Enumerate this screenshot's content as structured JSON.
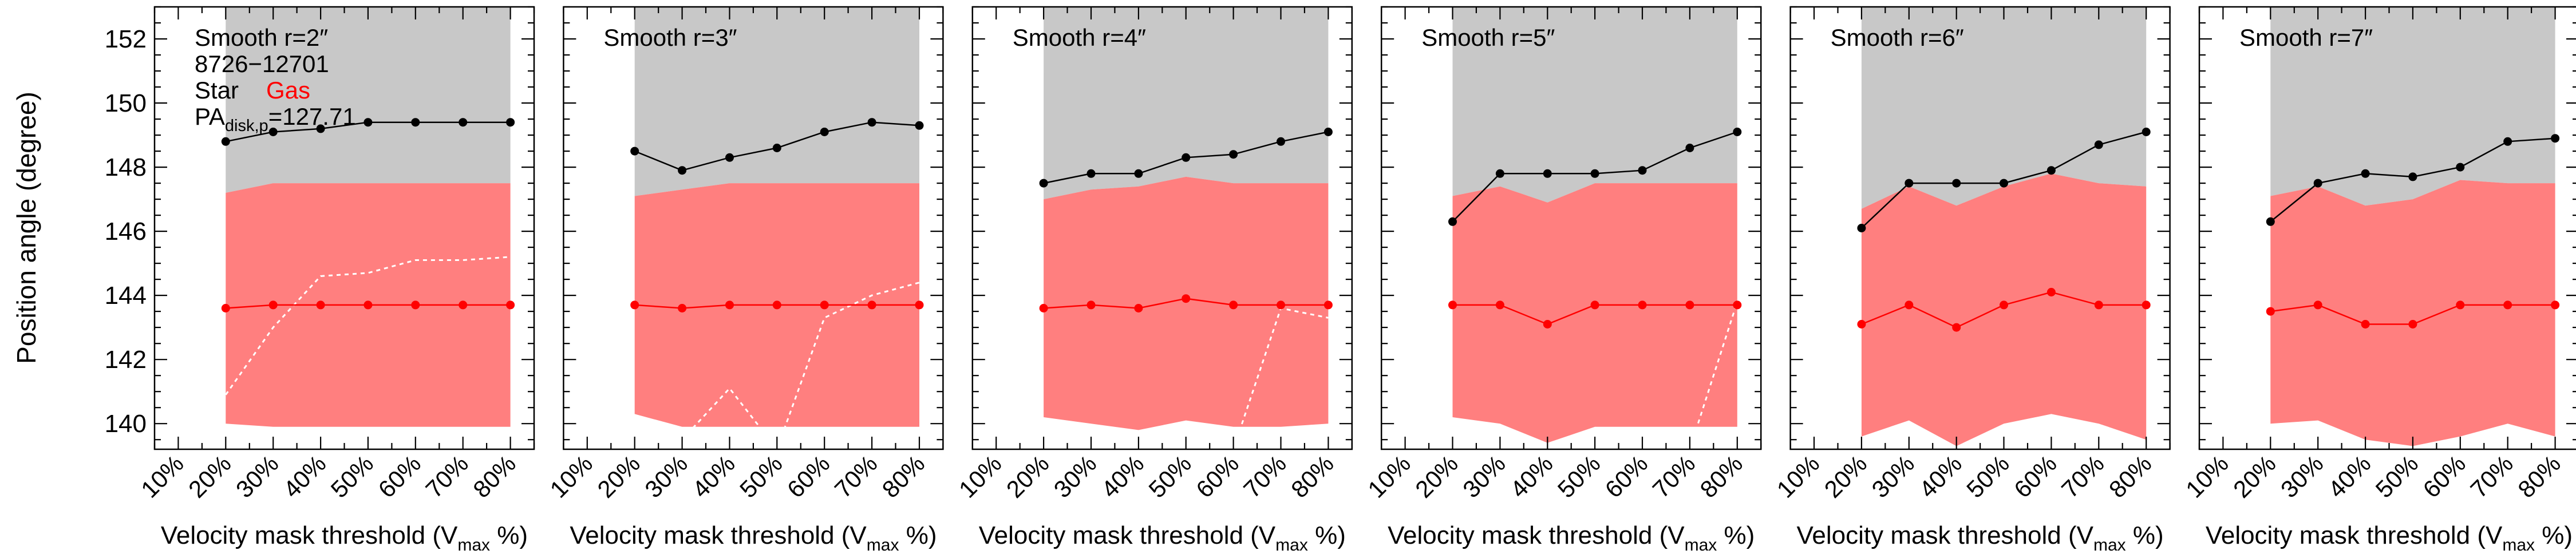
{
  "figure": {
    "ylabel": "Position angle (degree)",
    "xlabel_main": "Velocity mask threshold (V",
    "xlabel_sub": "max",
    "xlabel_tail": " %)",
    "legend": {
      "id_text": "8726−12701",
      "star_label": "Star",
      "gas_label": "Gas",
      "pa_main": "PA",
      "pa_sub": "disk,p",
      "pa_value": "=127.71"
    },
    "colors": {
      "star": "#000000",
      "gas": "#ff0000",
      "star_band": "#c8c8c8",
      "gas_band": "#ff7f7f",
      "dotted": "#ffffff"
    }
  },
  "chart_data": [
    {
      "type": "line",
      "title": "Smooth r=2″",
      "xticks": [
        "10%",
        "20%",
        "30%",
        "40%",
        "50%",
        "60%",
        "70%",
        "80%"
      ],
      "yticks": [
        140,
        142,
        144,
        146,
        148,
        150,
        152
      ],
      "xlim": [
        0.05,
        0.85
      ],
      "ylim": [
        139.2,
        153.0
      ],
      "x": [
        0.2,
        0.3,
        0.4,
        0.5,
        0.6,
        0.7,
        0.8
      ],
      "series": [
        {
          "name": "Star",
          "values": [
            148.8,
            149.1,
            149.2,
            149.4,
            149.4,
            149.4,
            149.4
          ]
        },
        {
          "name": "Gas",
          "values": [
            143.6,
            143.7,
            143.7,
            143.7,
            143.7,
            143.7,
            143.7
          ]
        }
      ],
      "star_band": {
        "upper": [
          153.0,
          153.0,
          153.0,
          153.0,
          153.0,
          153.0,
          153.0
        ],
        "lower": [
          147.2,
          147.5,
          147.5,
          147.5,
          147.5,
          147.5,
          147.5
        ]
      },
      "gas_band": {
        "upper": [
          147.2,
          147.5,
          147.5,
          147.5,
          147.5,
          147.5,
          147.5
        ],
        "lower": [
          140.0,
          139.9,
          139.9,
          139.9,
          139.9,
          139.9,
          139.9
        ]
      },
      "dotted_line": [
        140.9,
        143.0,
        144.6,
        144.7,
        145.1,
        145.1,
        145.2
      ]
    },
    {
      "type": "line",
      "title": "Smooth r=3″",
      "xticks": [
        "10%",
        "20%",
        "30%",
        "40%",
        "50%",
        "60%",
        "70%",
        "80%"
      ],
      "xlim": [
        0.05,
        0.85
      ],
      "ylim": [
        139.2,
        153.0
      ],
      "x": [
        0.2,
        0.3,
        0.4,
        0.5,
        0.6,
        0.7,
        0.8
      ],
      "series": [
        {
          "name": "Star",
          "values": [
            148.5,
            147.9,
            148.3,
            148.6,
            149.1,
            149.4,
            149.3
          ]
        },
        {
          "name": "Gas",
          "values": [
            143.7,
            143.6,
            143.7,
            143.7,
            143.7,
            143.7,
            143.7
          ]
        }
      ],
      "star_band": {
        "upper": [
          153.0,
          153.0,
          153.0,
          153.0,
          153.0,
          153.0,
          153.0
        ],
        "lower": [
          147.1,
          147.3,
          147.5,
          147.5,
          147.5,
          147.5,
          147.5
        ]
      },
      "gas_band": {
        "upper": [
          147.1,
          147.3,
          147.5,
          147.5,
          147.5,
          147.5,
          147.5
        ],
        "lower": [
          140.3,
          139.9,
          139.9,
          139.9,
          139.9,
          139.9,
          139.9
        ]
      },
      "dotted_line": [
        139.2,
        139.5,
        141.1,
        139.2,
        143.3,
        144.0,
        144.4
      ]
    },
    {
      "type": "line",
      "title": "Smooth r=4″",
      "xticks": [
        "10%",
        "20%",
        "30%",
        "40%",
        "50%",
        "60%",
        "70%",
        "80%"
      ],
      "xlim": [
        0.05,
        0.85
      ],
      "ylim": [
        139.2,
        153.0
      ],
      "x": [
        0.2,
        0.3,
        0.4,
        0.5,
        0.6,
        0.7,
        0.8
      ],
      "series": [
        {
          "name": "Star",
          "values": [
            147.5,
            147.8,
            147.8,
            148.3,
            148.4,
            148.8,
            149.1
          ]
        },
        {
          "name": "Gas",
          "values": [
            143.6,
            143.7,
            143.6,
            143.9,
            143.7,
            143.7,
            143.7
          ]
        }
      ],
      "star_band": {
        "upper": [
          153.0,
          153.0,
          153.0,
          153.0,
          153.0,
          153.0,
          153.0
        ],
        "lower": [
          147.0,
          147.3,
          147.4,
          147.7,
          147.5,
          147.5,
          147.5
        ]
      },
      "gas_band": {
        "upper": [
          147.0,
          147.3,
          147.4,
          147.7,
          147.5,
          147.5,
          147.5
        ],
        "lower": [
          140.2,
          140.0,
          139.8,
          140.1,
          139.9,
          139.9,
          140.0
        ]
      },
      "dotted_line": [
        139.2,
        139.2,
        139.2,
        139.2,
        139.2,
        143.6,
        143.3
      ]
    },
    {
      "type": "line",
      "title": "Smooth r=5″",
      "xticks": [
        "10%",
        "20%",
        "30%",
        "40%",
        "50%",
        "60%",
        "70%",
        "80%"
      ],
      "xlim": [
        0.05,
        0.85
      ],
      "ylim": [
        139.2,
        153.0
      ],
      "x": [
        0.2,
        0.3,
        0.4,
        0.5,
        0.6,
        0.7,
        0.8
      ],
      "series": [
        {
          "name": "Star",
          "values": [
            146.3,
            147.8,
            147.8,
            147.8,
            147.9,
            148.6,
            149.1
          ]
        },
        {
          "name": "Gas",
          "values": [
            143.7,
            143.7,
            143.1,
            143.7,
            143.7,
            143.7,
            143.7
          ]
        }
      ],
      "star_band": {
        "upper": [
          153.0,
          153.0,
          153.0,
          153.0,
          153.0,
          153.0,
          153.0
        ],
        "lower": [
          147.1,
          147.4,
          146.9,
          147.5,
          147.5,
          147.5,
          147.5
        ]
      },
      "gas_band": {
        "upper": [
          147.1,
          147.4,
          146.9,
          147.5,
          147.5,
          147.5,
          147.5
        ],
        "lower": [
          140.2,
          140.0,
          139.4,
          139.9,
          139.9,
          139.9,
          139.9
        ]
      },
      "dotted_line": [
        139.2,
        139.2,
        139.2,
        139.2,
        139.2,
        139.2,
        143.8
      ]
    },
    {
      "type": "line",
      "title": "Smooth r=6″",
      "xticks": [
        "10%",
        "20%",
        "30%",
        "40%",
        "50%",
        "60%",
        "70%",
        "80%"
      ],
      "xlim": [
        0.05,
        0.85
      ],
      "ylim": [
        139.2,
        153.0
      ],
      "x": [
        0.2,
        0.3,
        0.4,
        0.5,
        0.6,
        0.7,
        0.8
      ],
      "series": [
        {
          "name": "Star",
          "values": [
            146.1,
            147.5,
            147.5,
            147.5,
            147.9,
            148.7,
            149.1
          ]
        },
        {
          "name": "Gas",
          "values": [
            143.1,
            143.7,
            143.0,
            143.7,
            144.1,
            143.7,
            143.7
          ]
        }
      ],
      "star_band": {
        "upper": [
          153.0,
          153.0,
          153.0,
          153.0,
          153.0,
          153.0,
          153.0
        ],
        "lower": [
          146.7,
          147.4,
          146.8,
          147.4,
          147.8,
          147.5,
          147.4
        ]
      },
      "gas_band": {
        "upper": [
          146.7,
          147.4,
          146.8,
          147.4,
          147.8,
          147.5,
          147.4
        ],
        "lower": [
          139.6,
          140.1,
          139.3,
          140.0,
          140.3,
          140.0,
          139.5
        ]
      },
      "dotted_line": [
        139.2,
        139.2,
        139.2,
        139.2,
        139.2,
        139.2,
        139.2
      ]
    },
    {
      "type": "line",
      "title": "Smooth r=7″",
      "xticks": [
        "10%",
        "20%",
        "30%",
        "40%",
        "50%",
        "60%",
        "70%",
        "80%"
      ],
      "xlim": [
        0.05,
        0.85
      ],
      "ylim": [
        139.2,
        153.0
      ],
      "x": [
        0.2,
        0.3,
        0.4,
        0.5,
        0.6,
        0.7,
        0.8
      ],
      "series": [
        {
          "name": "Star",
          "values": [
            146.3,
            147.5,
            147.8,
            147.7,
            148.0,
            148.8,
            148.9
          ]
        },
        {
          "name": "Gas",
          "values": [
            143.5,
            143.7,
            143.1,
            143.1,
            143.7,
            143.7,
            143.7
          ]
        }
      ],
      "star_band": {
        "upper": [
          153.0,
          153.0,
          153.0,
          153.0,
          153.0,
          153.0,
          153.0
        ],
        "lower": [
          147.1,
          147.4,
          146.8,
          147.0,
          147.6,
          147.5,
          147.5
        ]
      },
      "gas_band": {
        "upper": [
          147.1,
          147.4,
          146.8,
          147.0,
          147.6,
          147.5,
          147.5
        ],
        "lower": [
          140.0,
          140.1,
          139.5,
          139.3,
          139.6,
          140.0,
          139.6
        ]
      },
      "dotted_line": [
        139.2,
        139.2,
        139.2,
        139.2,
        139.2,
        139.2,
        139.2
      ]
    }
  ]
}
